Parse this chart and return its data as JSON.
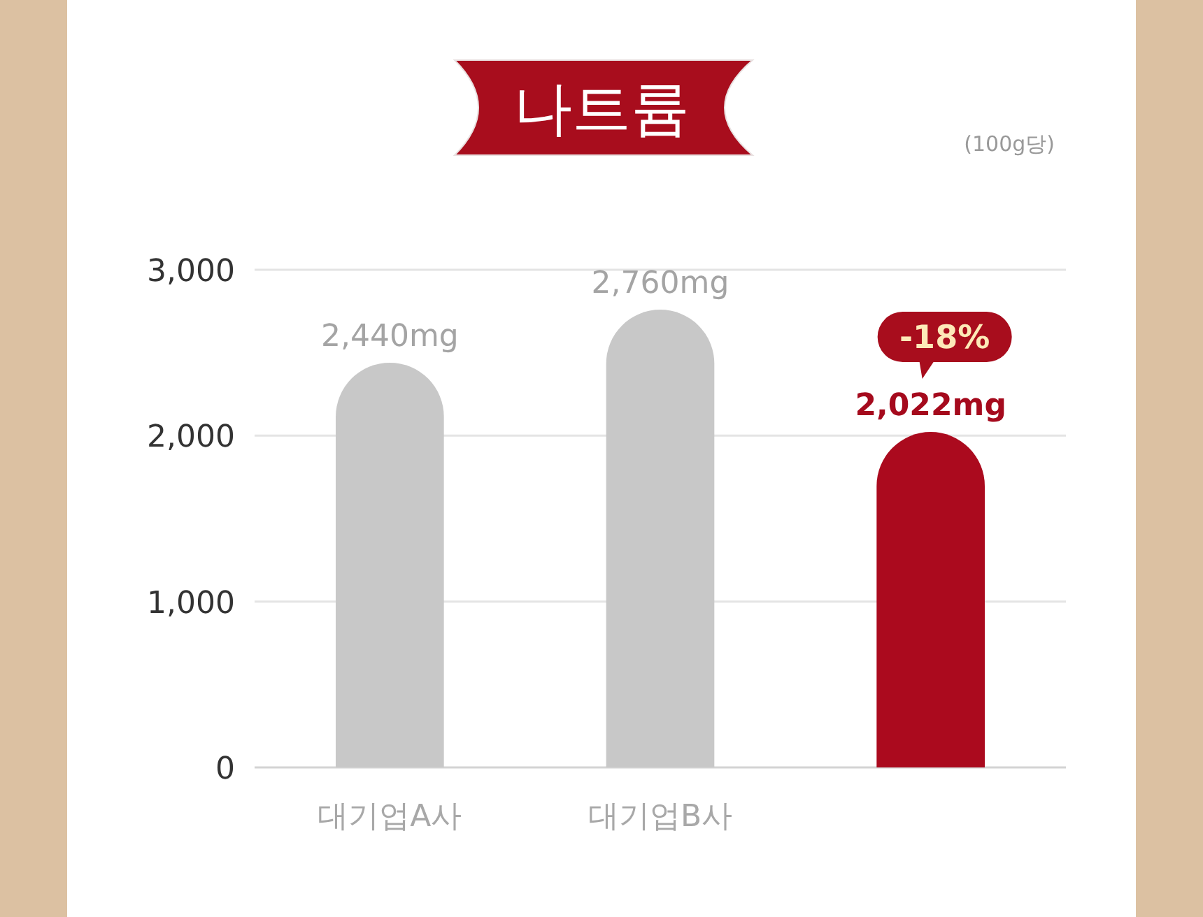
{
  "chart_data": {
    "type": "bar",
    "title": "나트륨",
    "categories": [
      "대기업A사",
      "대기업B사",
      null
    ],
    "values": [
      2440,
      2760,
      2022
    ],
    "colors": [
      "#c8c8c8",
      "#c8c8c8",
      "#ab0a1e"
    ],
    "value_labels": [
      "2,440mg",
      "2,760mg",
      "2,022mg"
    ],
    "ylim": [
      0,
      3000
    ],
    "yticks": [
      0,
      {
        "value": 1000,
        "label": "1,000"
      },
      {
        "value": 2000,
        "label": "2,000"
      },
      {
        "value": 3000,
        "label": "3,000"
      }
    ],
    "grid": "y",
    "annotations": [
      "(100g당)",
      {
        "text": "-18%",
        "y": 2022
      }
    ]
  }
}
